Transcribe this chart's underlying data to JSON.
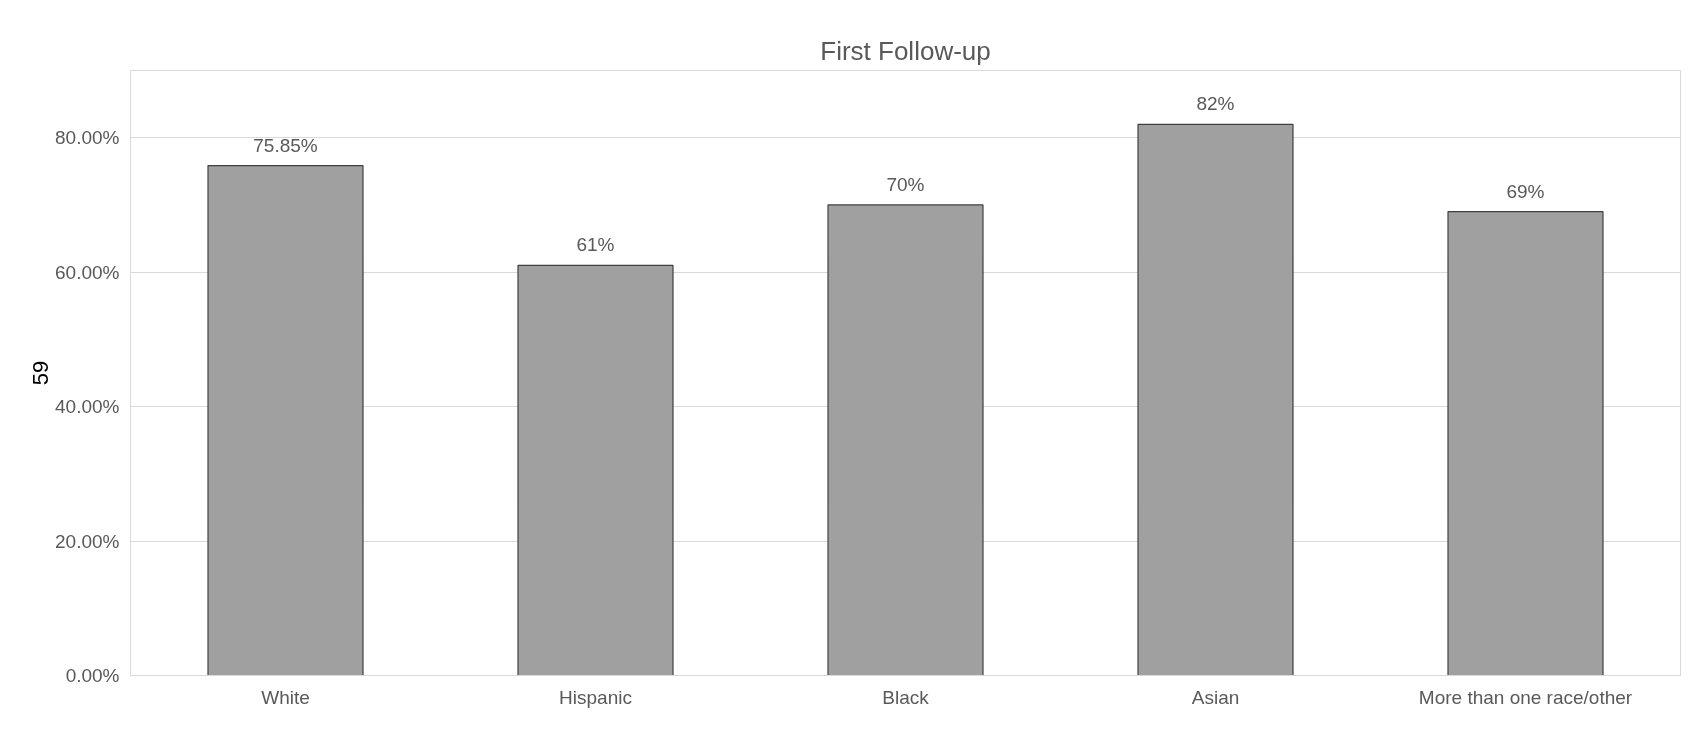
{
  "chart_data": {
    "type": "bar",
    "title": "First Follow-up",
    "categories": [
      "White",
      "Hispanic",
      "Black",
      "Asian",
      "More than one race/other"
    ],
    "values": [
      75.85,
      61,
      70,
      82,
      69
    ],
    "value_labels": [
      "75.85%",
      "61%",
      "70%",
      "82%",
      "69%"
    ],
    "color": "#a0a0a0",
    "ylim": [
      0,
      90
    ],
    "yticks": [
      {
        "value": 0,
        "label": "0.00%"
      },
      {
        "value": 20,
        "label": "20.00%"
      },
      {
        "value": 40,
        "label": "40.00%"
      },
      {
        "value": 60,
        "label": "60.00%"
      },
      {
        "value": 80,
        "label": "80.00%"
      }
    ],
    "grid": "y",
    "annotations": [
      "59"
    ]
  }
}
